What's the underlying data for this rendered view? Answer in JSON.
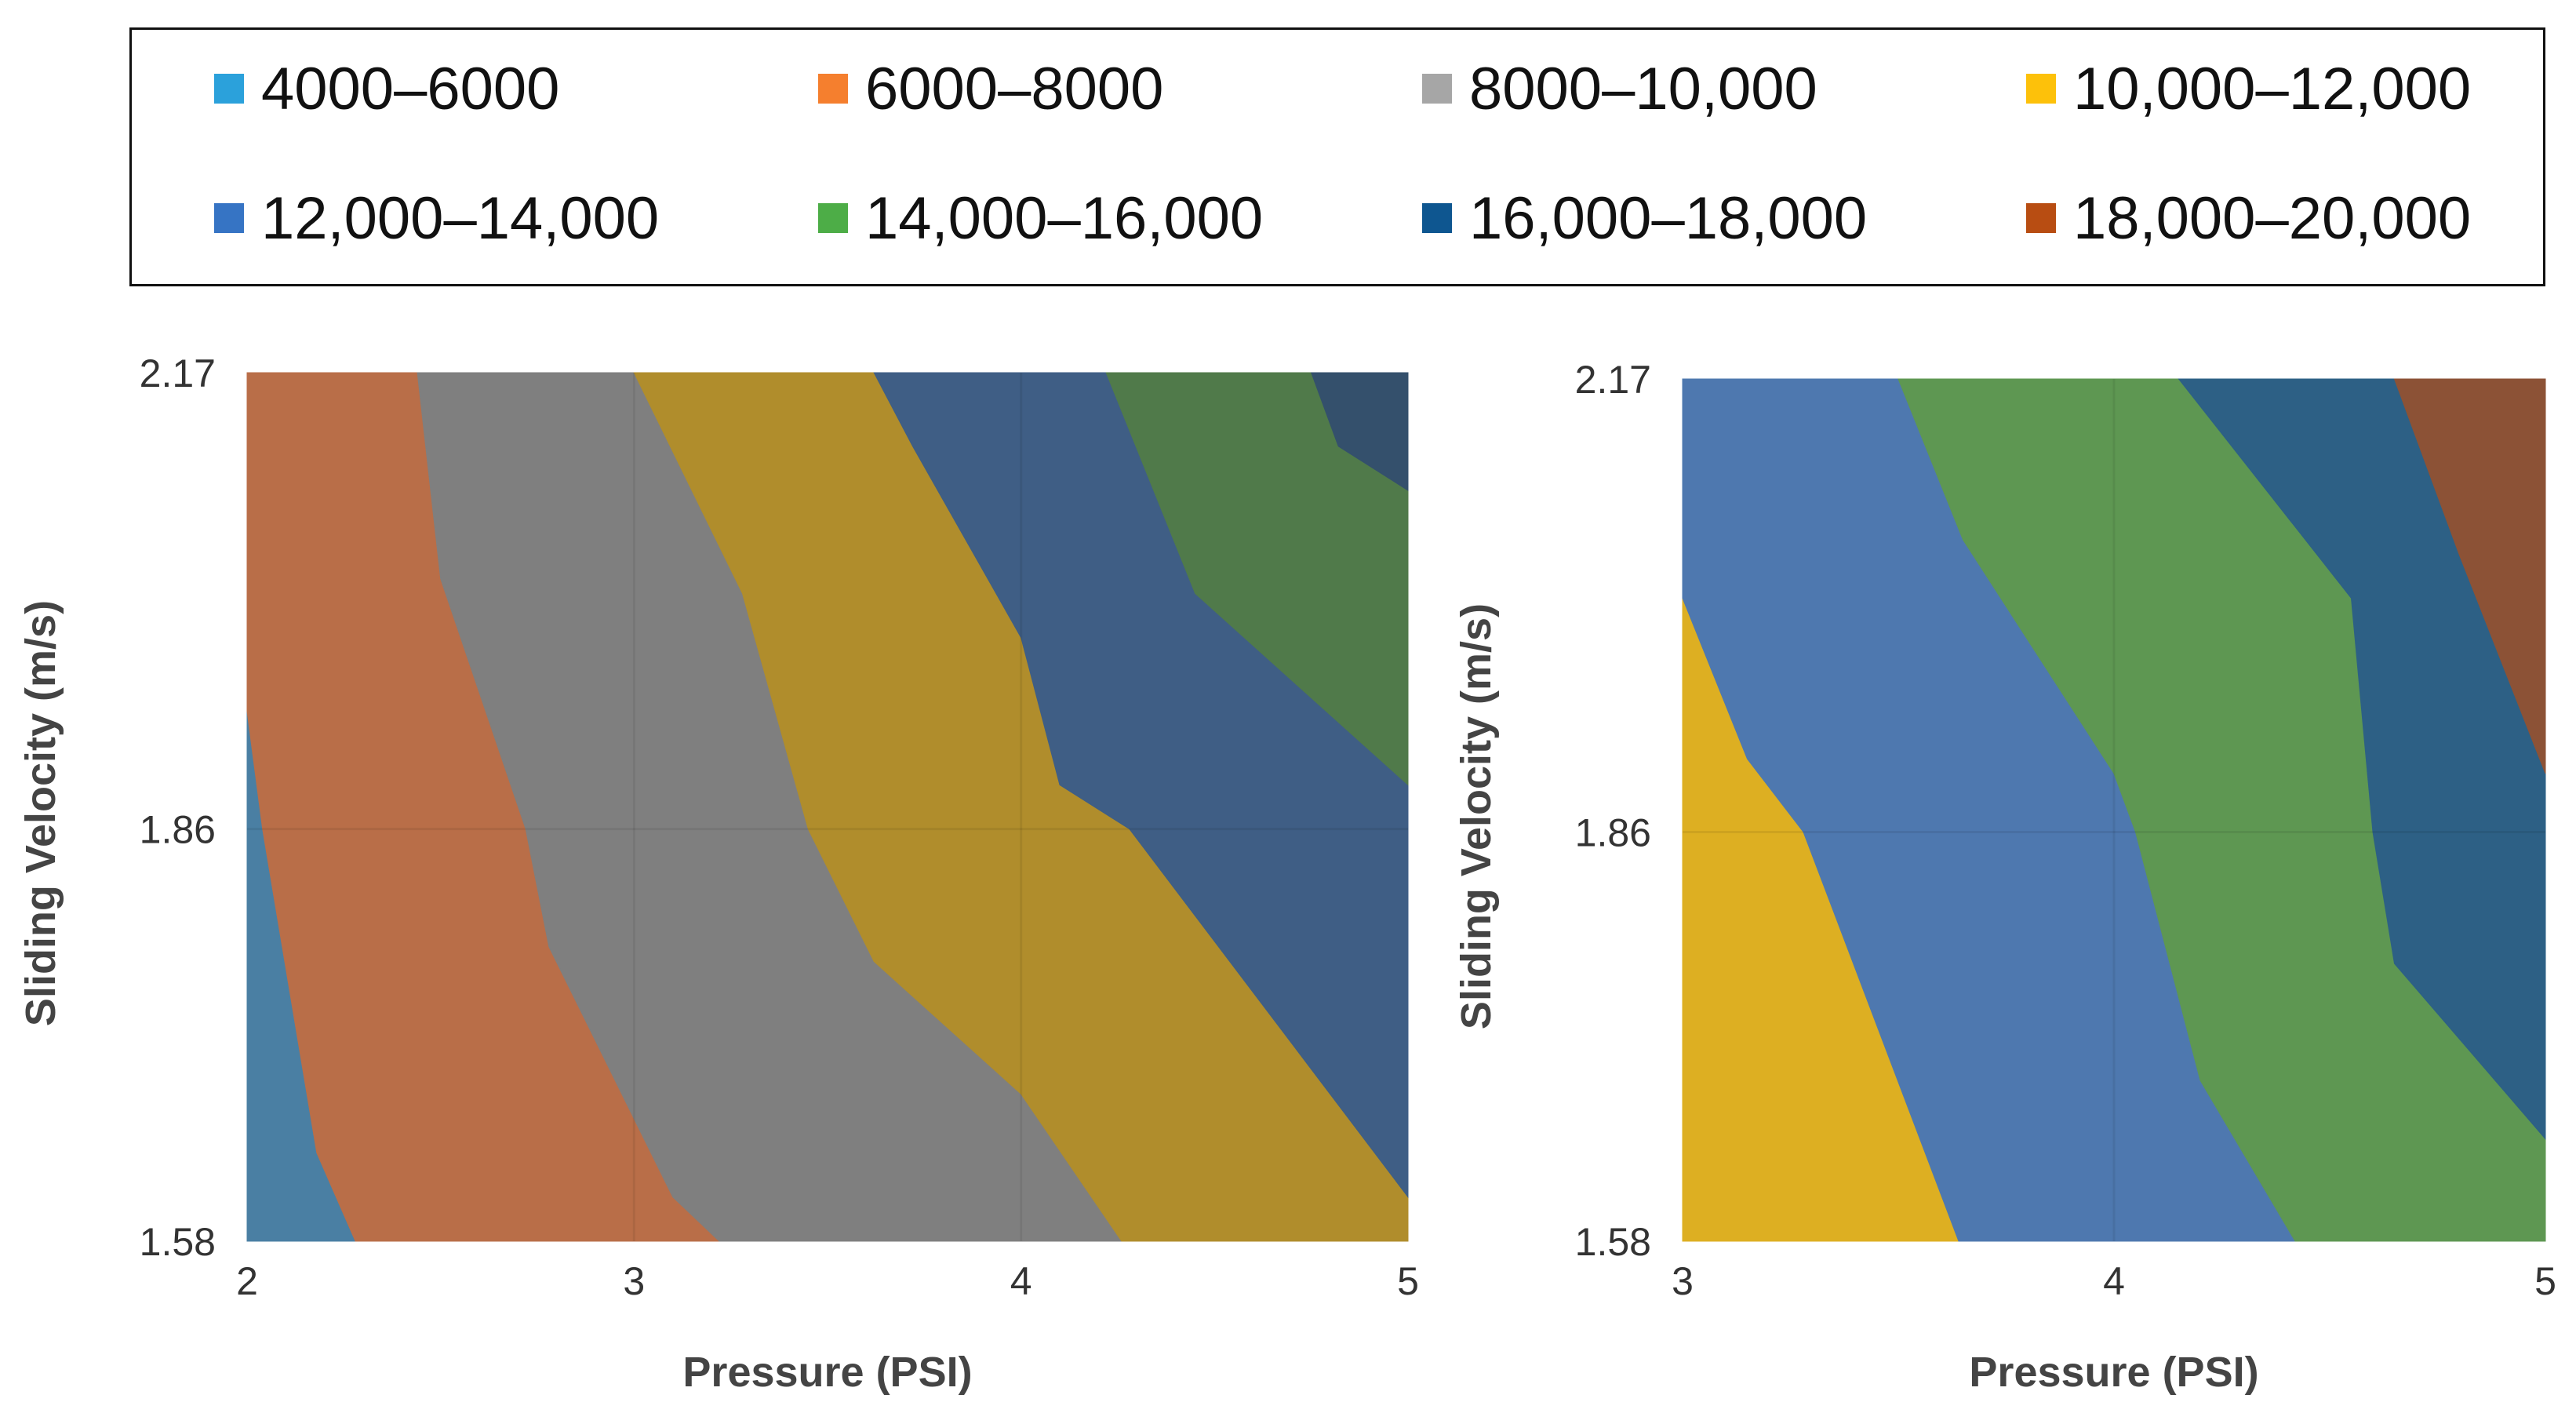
{
  "chart_data": [
    {
      "type": "contour",
      "title": "",
      "xlabel": "Pressure (PSI)",
      "ylabel": "Sliding Velocity (m/s)",
      "x_ticks": [
        2,
        3,
        4,
        5
      ],
      "y_ticks": [
        1.58,
        1.86,
        2.17
      ],
      "xlim": [
        2,
        5
      ],
      "ylim": [
        1.58,
        2.17
      ],
      "bands": [
        {
          "range": "4000–6000",
          "color": "#4a7fa3",
          "polygon": [
            [
              2,
              1.58
            ],
            [
              2.28,
              1.58
            ],
            [
              2.18,
              1.64
            ],
            [
              2.04,
              1.86
            ],
            [
              2,
              1.94
            ]
          ]
        },
        {
          "range": "6000–8000",
          "color": "#b96e48",
          "polygon": [
            [
              2,
              2.17
            ],
            [
              2.44,
              2.17
            ],
            [
              2.5,
              2.03
            ],
            [
              2.72,
              1.86
            ],
            [
              2.78,
              1.78
            ],
            [
              3.1,
              1.61
            ],
            [
              3.22,
              1.58
            ],
            [
              2.28,
              1.58
            ],
            [
              2.18,
              1.64
            ],
            [
              2.04,
              1.86
            ],
            [
              2,
              1.94
            ]
          ]
        },
        {
          "range": "8000–10,000",
          "color": "#7f7f7f",
          "polygon": [
            [
              2.44,
              2.17
            ],
            [
              3,
              2.17
            ],
            [
              3.28,
              2.02
            ],
            [
              3.45,
              1.86
            ],
            [
              3.62,
              1.77
            ],
            [
              4,
              1.68
            ],
            [
              4.26,
              1.58
            ],
            [
              3.22,
              1.58
            ],
            [
              3.1,
              1.61
            ],
            [
              2.78,
              1.78
            ],
            [
              2.72,
              1.86
            ],
            [
              2.5,
              2.03
            ]
          ]
        },
        {
          "range": "10,000–12,000",
          "color": "#b08d2c",
          "polygon": [
            [
              3,
              2.17
            ],
            [
              3.62,
              2.17
            ],
            [
              3.72,
              2.12
            ],
            [
              4,
              1.99
            ],
            [
              4.1,
              1.89
            ],
            [
              4.28,
              1.86
            ],
            [
              5,
              1.61
            ],
            [
              5,
              1.58
            ],
            [
              4.26,
              1.58
            ],
            [
              4,
              1.68
            ],
            [
              3.62,
              1.77
            ],
            [
              3.45,
              1.86
            ],
            [
              3.28,
              2.02
            ]
          ]
        },
        {
          "range": "12,000–14,000",
          "color": "#3f5e85",
          "polygon": [
            [
              3.62,
              2.17
            ],
            [
              4.22,
              2.17
            ],
            [
              4.45,
              2.02
            ],
            [
              5,
              1.89
            ],
            [
              5,
              1.61
            ],
            [
              4.28,
              1.86
            ],
            [
              4.1,
              1.89
            ],
            [
              4,
              1.99
            ],
            [
              3.72,
              2.12
            ]
          ]
        },
        {
          "range": "14,000–16,000",
          "color": "#507a4a",
          "polygon": [
            [
              4.22,
              2.17
            ],
            [
              4.75,
              2.17
            ],
            [
              4.82,
              2.12
            ],
            [
              5,
              2.09
            ],
            [
              5,
              1.89
            ],
            [
              4.45,
              2.02
            ]
          ]
        },
        {
          "range": "16,000–18,000",
          "color": "#34506c",
          "polygon": [
            [
              4.75,
              2.17
            ],
            [
              5,
              2.17
            ],
            [
              5,
              2.09
            ],
            [
              4.82,
              2.12
            ]
          ]
        }
      ]
    },
    {
      "type": "contour",
      "title": "",
      "xlabel": "Pressure (PSI)",
      "ylabel": "Sliding Velocity (m/s)",
      "x_ticks": [
        3,
        4,
        5
      ],
      "y_ticks": [
        1.58,
        1.86,
        2.17
      ],
      "xlim": [
        3,
        5
      ],
      "ylim": [
        1.58,
        2.17
      ],
      "bands": [
        {
          "range": "10,000–12,000",
          "color": "#ddaf22",
          "polygon": [
            [
              3,
              1.58
            ],
            [
              3.64,
              1.58
            ],
            [
              3.28,
              1.86
            ],
            [
              3.15,
              1.91
            ],
            [
              3,
              2.02
            ]
          ]
        },
        {
          "range": "12,000–14,000",
          "color": "#4e78af",
          "polygon": [
            [
              3,
              2.17
            ],
            [
              3.5,
              2.17
            ],
            [
              3.65,
              2.06
            ],
            [
              4,
              1.9
            ],
            [
              4.05,
              1.86
            ],
            [
              4.2,
              1.69
            ],
            [
              4.42,
              1.58
            ],
            [
              3.64,
              1.58
            ],
            [
              3.28,
              1.86
            ],
            [
              3.15,
              1.91
            ],
            [
              3,
              2.02
            ]
          ]
        },
        {
          "range": "14,000–16,000",
          "color": "#5e9752",
          "polygon": [
            [
              3.5,
              2.17
            ],
            [
              4.15,
              2.17
            ],
            [
              4.55,
              2.02
            ],
            [
              4.6,
              1.86
            ],
            [
              4.65,
              1.77
            ],
            [
              5,
              1.65
            ],
            [
              5,
              1.58
            ],
            [
              4.42,
              1.58
            ],
            [
              4.2,
              1.69
            ],
            [
              4.05,
              1.86
            ],
            [
              4,
              1.9
            ],
            [
              3.65,
              2.06
            ]
          ]
        },
        {
          "range": "16,000–18,000",
          "color": "#2d6085",
          "polygon": [
            [
              4.15,
              2.17
            ],
            [
              4.65,
              2.17
            ],
            [
              4.8,
              2.05
            ],
            [
              5,
              1.9
            ],
            [
              5,
              1.65
            ],
            [
              4.65,
              1.77
            ],
            [
              4.6,
              1.86
            ],
            [
              4.55,
              2.02
            ]
          ]
        },
        {
          "range": "18,000–20,000",
          "color": "#8c5236",
          "polygon": [
            [
              4.65,
              2.17
            ],
            [
              5,
              2.17
            ],
            [
              5,
              1.9
            ],
            [
              4.8,
              2.05
            ]
          ]
        }
      ]
    }
  ],
  "legend": [
    {
      "label": "4000–6000",
      "color": "#2ba1db"
    },
    {
      "label": "6000–8000",
      "color": "#f57f2e"
    },
    {
      "label": "8000–10,000",
      "color": "#a6a6a6"
    },
    {
      "label": "10,000–12,000",
      "color": "#fdc10a"
    },
    {
      "label": "12,000–14,000",
      "color": "#3674c4"
    },
    {
      "label": "14,000–16,000",
      "color": "#4dad47"
    },
    {
      "label": "16,000–18,000",
      "color": "#0e5690"
    },
    {
      "label": "18,000–20,000",
      "color": "#b84d12"
    }
  ]
}
